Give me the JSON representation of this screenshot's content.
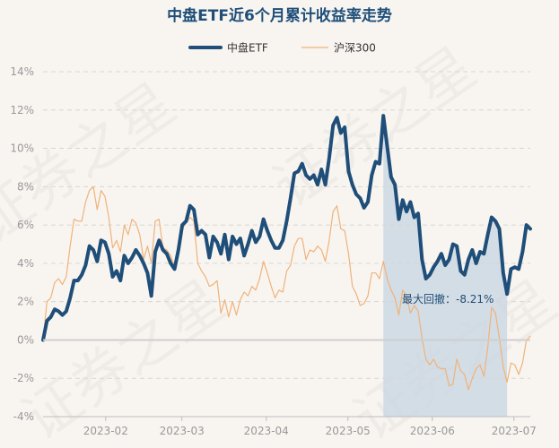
{
  "chart_data": {
    "type": "line",
    "title": "中盘ETF近6个月累计收益率走势",
    "xlabel": "",
    "ylabel": "",
    "x_range": [
      "2023-01-09",
      "2023-07-07"
    ],
    "xticks": [
      "2023-02",
      "2023-03",
      "2023-04",
      "2023-05",
      "2023-06",
      "2023-07"
    ],
    "ylim": [
      -4,
      14
    ],
    "yticks": [
      -4,
      -2,
      0,
      2,
      4,
      6,
      8,
      10,
      12,
      14
    ],
    "ytick_suffix": "%",
    "grid": true,
    "legend_position": "top-center",
    "series": [
      {
        "name": "中盘ETF",
        "color": "#1f4e79",
        "line_width": "thick",
        "values": [
          0.0,
          1.0,
          1.2,
          1.6,
          1.5,
          1.3,
          1.5,
          2.2,
          3.1,
          3.1,
          3.4,
          3.9,
          4.9,
          4.7,
          4.1,
          5.2,
          5.1,
          4.5,
          3.3,
          3.6,
          3.1,
          4.4,
          4.0,
          4.3,
          4.7,
          4.4,
          4.0,
          3.5,
          2.3,
          4.6,
          5.2,
          4.7,
          4.5,
          4.0,
          3.7,
          4.7,
          6.0,
          6.2,
          7.0,
          6.8,
          5.5,
          5.7,
          5.5,
          4.3,
          5.4,
          5.1,
          4.5,
          5.5,
          4.2,
          5.4,
          5.0,
          5.3,
          4.4,
          5.0,
          5.7,
          5.1,
          5.4,
          6.3,
          5.7,
          5.2,
          4.8,
          4.8,
          5.2,
          6.2,
          7.4,
          8.7,
          8.8,
          9.2,
          8.6,
          8.4,
          8.6,
          8.1,
          8.9,
          8.1,
          9.5,
          11.2,
          11.6,
          10.8,
          11.1,
          8.8,
          8.1,
          7.6,
          7.4,
          6.9,
          7.2,
          8.6,
          9.3,
          9.2,
          11.7,
          10.1,
          8.5,
          8.1,
          6.3,
          7.3,
          6.7,
          7.2,
          6.4,
          6.6,
          4.2,
          3.2,
          3.4,
          3.8,
          4.1,
          4.5,
          3.9,
          4.2,
          5.0,
          4.9,
          3.6,
          3.4,
          4.2,
          4.7,
          4.0,
          4.6,
          4.5,
          5.5,
          6.4,
          6.2,
          5.8,
          3.5,
          2.4,
          3.7,
          3.8,
          3.7,
          4.6,
          6.0,
          5.8
        ]
      },
      {
        "name": "沪深300",
        "color": "#f0b27a",
        "line_width": "thin",
        "values": [
          0.0,
          2.0,
          2.2,
          3.0,
          3.2,
          2.9,
          3.3,
          4.9,
          6.3,
          6.2,
          6.2,
          7.2,
          7.8,
          8.0,
          6.8,
          7.8,
          7.5,
          6.4,
          4.8,
          5.2,
          4.6,
          6.0,
          5.5,
          6.3,
          6.1,
          5.5,
          4.2,
          4.9,
          4.0,
          6.2,
          6.3,
          4.8,
          4.7,
          4.4,
          3.8,
          4.7,
          5.8,
          6.1,
          6.4,
          6.2,
          4.0,
          3.6,
          3.3,
          2.8,
          2.9,
          3.1,
          1.4,
          2.1,
          1.2,
          2.0,
          1.3,
          2.1,
          2.5,
          2.3,
          2.8,
          2.6,
          3.2,
          4.1,
          3.5,
          2.8,
          2.2,
          2.6,
          2.5,
          3.6,
          3.9,
          4.9,
          5.3,
          5.3,
          4.2,
          4.7,
          4.6,
          4.9,
          4.7,
          4.1,
          5.2,
          6.7,
          7.0,
          5.8,
          5.7,
          4.5,
          2.8,
          2.4,
          1.8,
          1.9,
          2.3,
          3.5,
          3.5,
          3.2,
          4.1,
          3.2,
          2.6,
          2.2,
          1.3,
          2.6,
          2.3,
          1.4,
          1.8,
          1.5,
          0.1,
          -1.0,
          -1.3,
          -1.0,
          -1.4,
          -1.5,
          -1.5,
          -2.4,
          -2.3,
          -1.0,
          -1.6,
          -1.8,
          -2.6,
          -2.0,
          -1.5,
          -1.3,
          -1.9,
          -0.4,
          1.7,
          1.4,
          0.1,
          -1.4,
          -2.2,
          -1.2,
          -1.3,
          -1.8,
          -1.2,
          0.0,
          0.2
        ]
      }
    ],
    "drawdown": {
      "label": "最大回撤：-8.21%",
      "series": "中盘ETF",
      "start_index": 88,
      "end_index": 120,
      "shade_color": "#ccd8e3"
    }
  },
  "watermark": "证券之星"
}
